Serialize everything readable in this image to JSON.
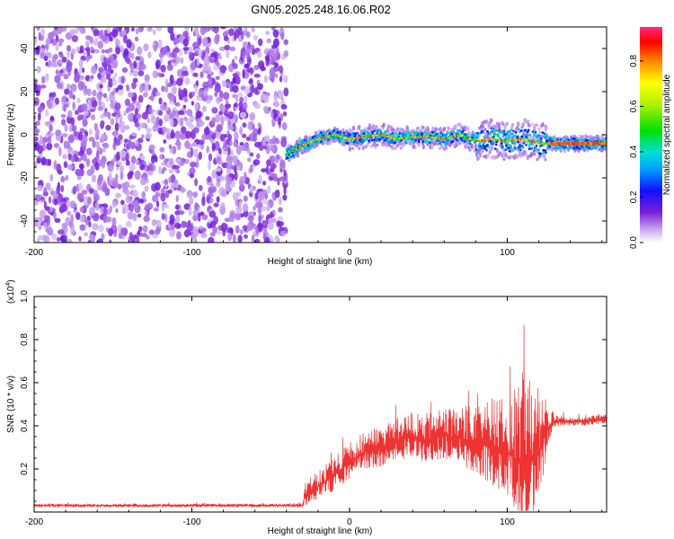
{
  "title": "GN05.2025.248.16.06.R02",
  "spectrogram": {
    "type": "heatmap",
    "xlabel": "Height of straight line (km)",
    "ylabel": "Frequency (Hz)",
    "xlim": [
      -200,
      163
    ],
    "ylim": [
      -50,
      50
    ],
    "xticks": [
      -200,
      -100,
      0,
      100
    ],
    "xtick_labels": [
      "-200",
      "-100",
      "0",
      "100"
    ],
    "yticks": [
      -40,
      -20,
      0,
      20,
      40
    ],
    "ytick_labels": [
      "-40",
      "-20",
      "0",
      "20",
      "40"
    ],
    "noise_region_x": [
      -200,
      -40
    ],
    "signal_track": {
      "x": [
        -40,
        -30,
        -20,
        -10,
        0,
        10,
        20,
        30,
        40,
        50,
        60,
        70,
        80,
        90,
        100,
        110,
        120,
        130,
        140,
        150,
        163
      ],
      "freq": [
        -9,
        -5,
        -2,
        0,
        -2,
        -1,
        0,
        -2,
        -1,
        -1,
        -2,
        0,
        -3,
        -2,
        -3,
        -2,
        -4,
        -4,
        -4,
        -4,
        -4
      ]
    },
    "colorbar": {
      "label": "Normalized spectral amplitude",
      "range": [
        0,
        0.95
      ],
      "ticks": [
        0.0,
        0.2,
        0.4,
        0.6,
        0.8
      ],
      "tick_labels": [
        "0.0",
        "0.2",
        "0.4",
        "0.6",
        "0.8"
      ]
    }
  },
  "snr": {
    "type": "line",
    "xlabel": "Height of straight line (km)",
    "ylabel": "SNR (10 * v/v)",
    "scale_label": "(x10",
    "scale_exp": "4",
    "scale_close": ")",
    "xlim": [
      -200,
      163
    ],
    "ylim": [
      0,
      1.0
    ],
    "xticks": [
      -200,
      -100,
      0,
      100
    ],
    "xtick_labels": [
      "-200",
      "-100",
      "0",
      "100"
    ],
    "yticks": [
      0.2,
      0.4,
      0.6,
      0.8,
      1.0
    ],
    "ytick_labels": [
      "0.2",
      "0.4",
      "0.6",
      "0.8",
      "1.0"
    ],
    "color": "#ee3333",
    "envelope": {
      "x": [
        -200,
        -30,
        -28,
        -10,
        0,
        10,
        20,
        30,
        40,
        50,
        60,
        70,
        80,
        90,
        100,
        105,
        110,
        115,
        120,
        125,
        130,
        140,
        150,
        163
      ],
      "base": [
        0.03,
        0.03,
        0.08,
        0.17,
        0.23,
        0.28,
        0.3,
        0.33,
        0.35,
        0.33,
        0.36,
        0.34,
        0.33,
        0.3,
        0.28,
        0.25,
        0.22,
        0.24,
        0.27,
        0.38,
        0.42,
        0.42,
        0.42,
        0.43
      ],
      "spread": [
        0.015,
        0.015,
        0.1,
        0.15,
        0.16,
        0.16,
        0.18,
        0.18,
        0.2,
        0.22,
        0.22,
        0.24,
        0.3,
        0.35,
        0.45,
        0.55,
        0.75,
        0.6,
        0.5,
        0.25,
        0.05,
        0.04,
        0.04,
        0.04
      ]
    }
  }
}
